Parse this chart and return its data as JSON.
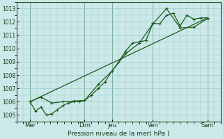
{
  "background_color": "#cce8e8",
  "grid_color": "#99cccc",
  "line_color": "#1a5c1a",
  "xlabel": "Pression niveau de la mer( hPa )",
  "ylim": [
    1004.5,
    1013.5
  ],
  "yticks": [
    1005,
    1006,
    1007,
    1008,
    1009,
    1010,
    1011,
    1012,
    1013
  ],
  "xlim": [
    0,
    300
  ],
  "x_tick_positions": [
    20,
    100,
    140,
    200,
    280
  ],
  "x_tick_labels": [
    "Mer",
    "Dim",
    "Jeu",
    "Ven",
    "Sam"
  ],
  "x_vlines": [
    20,
    100,
    140,
    200,
    280
  ],
  "line1_x": [
    20,
    28,
    36,
    44,
    52,
    60,
    68,
    76,
    84,
    92,
    100,
    110,
    120,
    130,
    140,
    150,
    160,
    170,
    180,
    190,
    200,
    210,
    220,
    230,
    240,
    250,
    260,
    270,
    280
  ],
  "line1_y": [
    1006.0,
    1005.3,
    1005.6,
    1005.0,
    1005.1,
    1005.4,
    1005.7,
    1005.9,
    1006.0,
    1006.0,
    1006.1,
    1006.5,
    1007.0,
    1007.5,
    1008.3,
    1009.0,
    1009.8,
    1010.4,
    1010.5,
    1010.6,
    1011.9,
    1011.85,
    1012.5,
    1012.65,
    1011.7,
    1012.5,
    1012.2,
    1012.3,
    1012.3
  ],
  "line2_x": [
    20,
    36,
    52,
    68,
    84,
    100,
    120,
    140,
    160,
    180,
    200,
    220,
    240,
    260,
    280
  ],
  "line2_y": [
    1006.0,
    1006.35,
    1005.9,
    1006.0,
    1006.05,
    1006.1,
    1007.3,
    1008.3,
    1009.6,
    1010.4,
    1011.85,
    1013.0,
    1011.55,
    1011.6,
    1012.25
  ],
  "line3_x": [
    20,
    280
  ],
  "line3_y": [
    1006.0,
    1012.3
  ],
  "markersize": 3,
  "linewidth": 0.9
}
